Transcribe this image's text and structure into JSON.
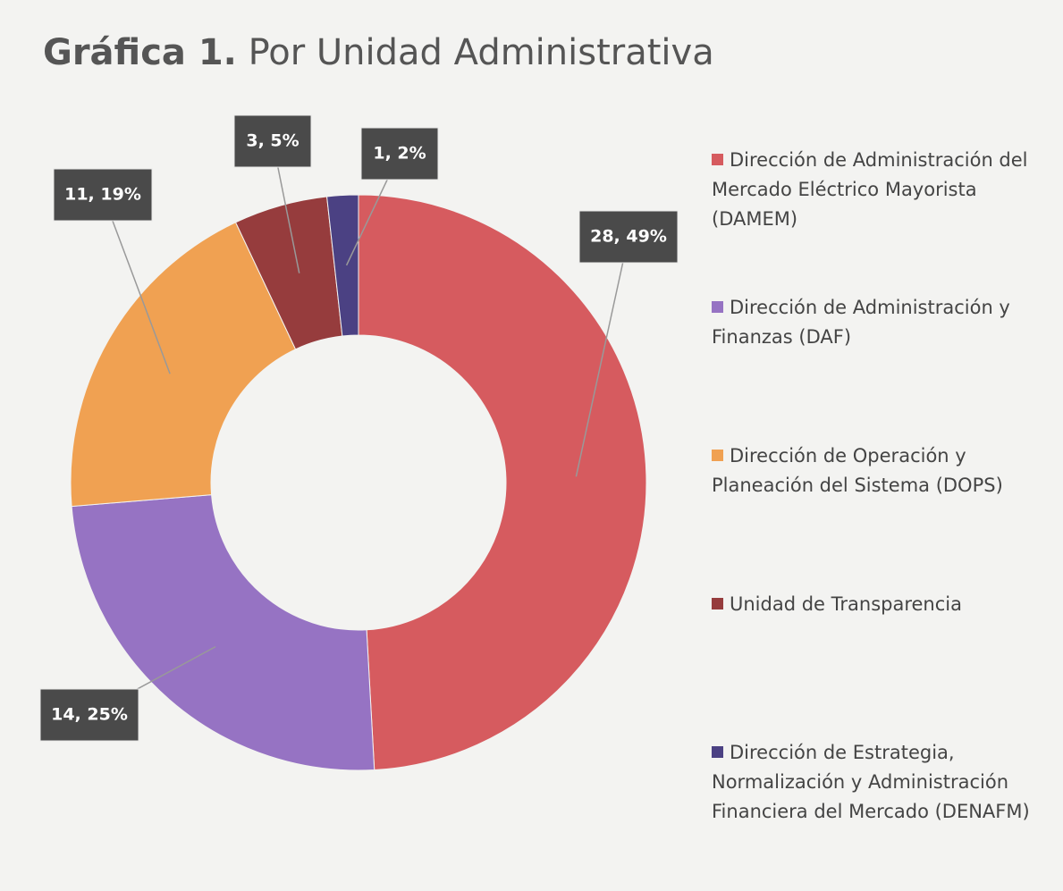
{
  "chart_data": {
    "type": "donut",
    "title_number": "Gráfica 1.",
    "title": "Por Unidad Administrativa",
    "categories": [
      "Dirección de Administración del Mercado Eléctrico Mayorista (DAMEM)",
      "Dirección de Administración y Finanzas (DAF)",
      "Dirección de Operación y Planeación del Sistema (DOPS)",
      "Unidad de Transparencia",
      "Dirección de Estrategia, Normalización y Administración Financiera del Mercado (DENAFM)"
    ],
    "values": [
      28,
      14,
      11,
      3,
      1
    ],
    "value_labels": [
      "28, 49%",
      "14, 25%",
      "11, 19%",
      "3, 5%",
      "1, 2%"
    ],
    "colors": [
      "#d65b5f",
      "#9673c3",
      "#f0a152",
      "#963c3d",
      "#4b4183"
    ],
    "legend": "right"
  }
}
